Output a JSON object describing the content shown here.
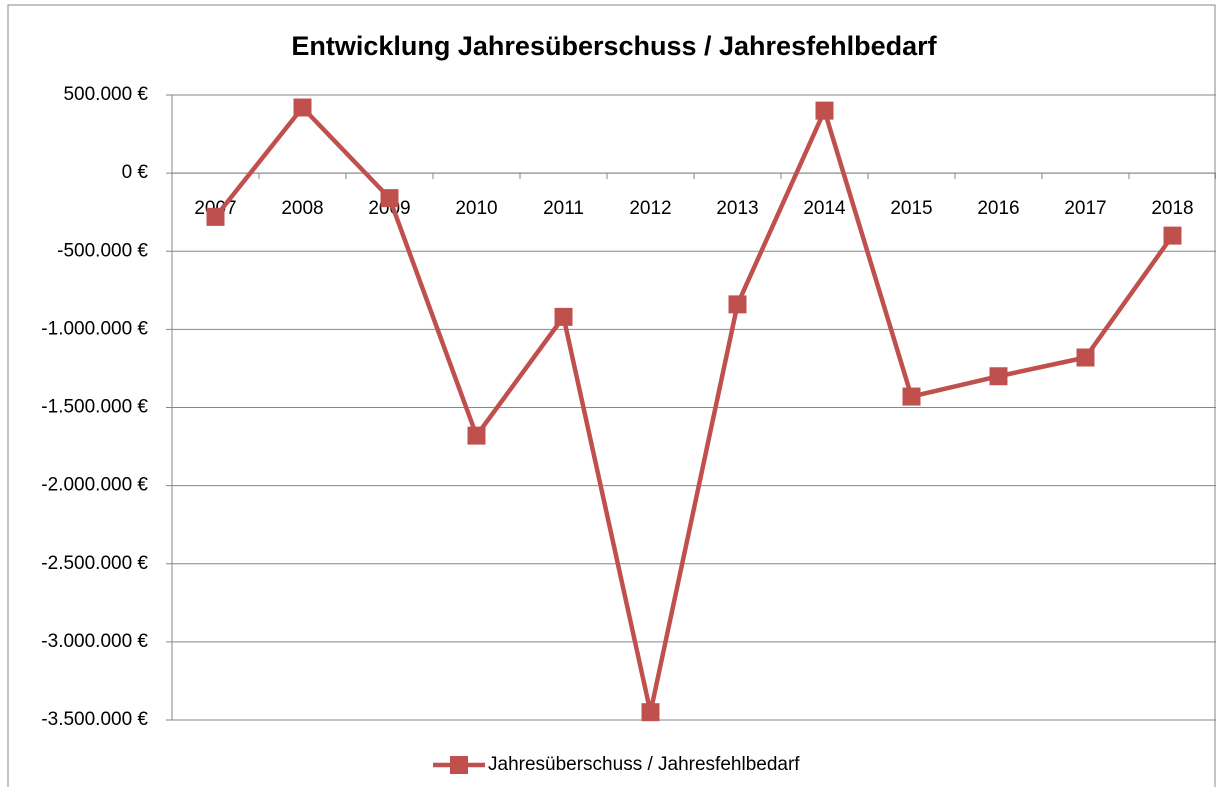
{
  "chart_data": {
    "type": "line",
    "title": "Entwicklung Jahresüberschuss / Jahresfehlbedarf",
    "categories": [
      "2007",
      "2008",
      "2009",
      "2010",
      "2011",
      "2012",
      "2013",
      "2014",
      "2015",
      "2016",
      "2017",
      "2018"
    ],
    "series": [
      {
        "name": "Jahresüberschuss / Jahresfehlbedarf",
        "color": "#c0504d",
        "values": [
          -280000,
          420000,
          -160000,
          -1680000,
          -920000,
          -3450000,
          -840000,
          400000,
          -1430000,
          -1300000,
          -1180000,
          -400000
        ]
      }
    ],
    "ylim": [
      -3500000,
      500000
    ],
    "yticks": [
      {
        "value": -3500000,
        "label": "-3.500.000 €"
      },
      {
        "value": -3000000,
        "label": "-3.000.000 €"
      },
      {
        "value": -2500000,
        "label": "-2.500.000 €"
      },
      {
        "value": -2000000,
        "label": "-2.000.000 €"
      },
      {
        "value": -1500000,
        "label": "-1.500.000 €"
      },
      {
        "value": -1000000,
        "label": "-1.000.000 €"
      },
      {
        "value": -500000,
        "label": "-500.000 €"
      },
      {
        "value": 0,
        "label": "0 €"
      },
      {
        "value": 500000,
        "label": "500.000 €"
      }
    ],
    "grid": true,
    "legend": "bottom"
  }
}
